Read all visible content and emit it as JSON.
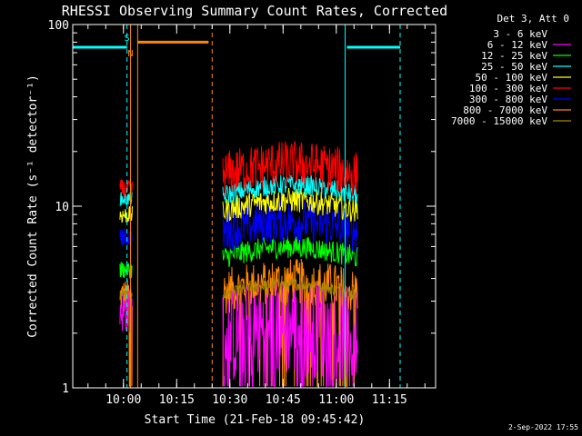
{
  "chart_data": {
    "type": "line",
    "title": "RHESSI Observing Summary Count Rates, Corrected",
    "xlabel": "Start Time (21-Feb-18 09:45:42)",
    "ylabel": "Corrected Count Rate (s⁻¹ detector⁻¹)",
    "yscale": "log",
    "ylim": [
      1,
      100
    ],
    "xlim": [
      "09:45:42",
      "11:28:00"
    ],
    "x_ticks": [
      "10:00",
      "10:15",
      "10:30",
      "10:45",
      "11:00",
      "11:15"
    ],
    "y_ticks": [
      "1",
      "10",
      "100"
    ],
    "legend_title": "Det 3, Att 0",
    "legend_position": "right, outside plot",
    "series": [
      {
        "name": "3 - 6 keV",
        "color": "#000000",
        "segments": [],
        "level": null
      },
      {
        "name": "6 - 12 keV",
        "color": "#ff00ff",
        "level_segment1": [
          2.0,
          3.5
        ],
        "level_segment2": [
          1.0,
          3.5
        ]
      },
      {
        "name": "12 - 25 keV",
        "color": "#00ff00",
        "level_segment1": [
          4.0,
          5.0
        ],
        "level_segment2": [
          4.5,
          6.0
        ]
      },
      {
        "name": "25 - 50 keV",
        "color": "#00ffff",
        "level_segment1": [
          10.0,
          12.0
        ],
        "level_segment2": [
          10.0,
          13.0
        ]
      },
      {
        "name": "50 - 100 keV",
        "color": "#ffff00",
        "level_segment1": [
          8.0,
          10.0
        ],
        "level_segment2": [
          8.0,
          11.0
        ]
      },
      {
        "name": "100 - 300 keV",
        "color": "#ff0000",
        "level_segment1": [
          11.0,
          14.0
        ],
        "level_segment2": [
          11.0,
          20.0
        ]
      },
      {
        "name": "300 - 800 keV",
        "color": "#0000ff",
        "level_segment1": [
          6.0,
          7.5
        ],
        "level_segment2": [
          5.5,
          9.5
        ]
      },
      {
        "name": "800 - 7000 keV",
        "color": "#ff8800",
        "level_segment1": [
          2.5,
          4.0
        ],
        "level_segment2": [
          2.5,
          4.5
        ]
      },
      {
        "name": "7000 - 15000 keV",
        "color": "#aa8800",
        "level_segment1": [
          3.0,
          3.5
        ],
        "level_segment2": [
          3.0,
          3.5
        ]
      }
    ],
    "data_segments": [
      {
        "start": "09:59:00",
        "end": "10:02:30"
      },
      {
        "start": "10:28:00",
        "end": "11:06:00"
      }
    ],
    "saa_bars": [
      {
        "start": "09:45:42",
        "end": "10:01:00",
        "value": 75,
        "color": "#00ffff"
      },
      {
        "start": "11:03:00",
        "end": "11:18:00",
        "value": 75,
        "color": "#00ffff"
      }
    ],
    "night_bar": {
      "start": "10:04:00",
      "end": "10:24:00",
      "value": 80,
      "color": "#ff8800"
    },
    "vlines": [
      {
        "time": "09:45:42",
        "color": "#00ffff",
        "style": "solid"
      },
      {
        "time": "10:01:00",
        "color": "#00ffff",
        "style": "dashed"
      },
      {
        "time": "10:02:00",
        "color": "#ff8800",
        "style": "solid"
      },
      {
        "time": "10:04:00",
        "color": "#ff8800",
        "style": "solid"
      },
      {
        "time": "10:25:00",
        "color": "#ff8800",
        "style": "dashed"
      },
      {
        "time": "11:02:30",
        "color": "#00ffff",
        "style": "solid"
      },
      {
        "time": "11:18:00",
        "color": "#00ffff",
        "style": "dashed"
      }
    ],
    "annotations": [
      {
        "text": "S",
        "time": "10:01:00",
        "value": 85,
        "color": "#00ffff"
      },
      {
        "text": "N",
        "time": "10:02:00",
        "value": 70,
        "color": "#ff8800"
      }
    ]
  },
  "footer": {
    "date": "2-Sep-2022 17:55"
  }
}
